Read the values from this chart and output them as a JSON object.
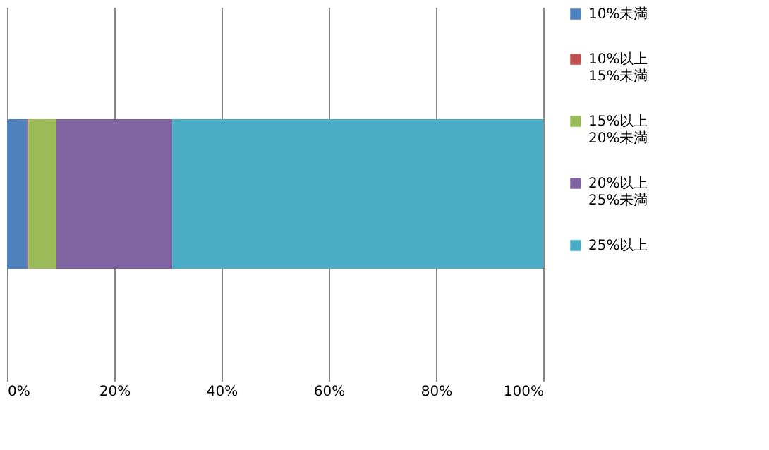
{
  "chart_data": {
    "type": "bar",
    "orientation": "horizontal",
    "stacked": true,
    "categories": [
      null
    ],
    "series": [
      {
        "name": "10%未満",
        "color": "#4f81bd",
        "values": [
          3.8
        ]
      },
      {
        "name": "10%以上\n15%未満",
        "color": "#c0504d",
        "values": [
          0.2
        ]
      },
      {
        "name": "15%以上\n20%未満",
        "color": "#9bbb59",
        "values": [
          5.2
        ]
      },
      {
        "name": "20%以上\n25%未満",
        "color": "#8064a2",
        "values": [
          21.6
        ]
      },
      {
        "name": "25%以上",
        "color": "#4bacc6",
        "values": [
          69.2
        ]
      }
    ],
    "xlim": [
      0,
      100
    ],
    "xticks": [
      {
        "value": 0,
        "label": "0%"
      },
      {
        "value": 20,
        "label": "20%"
      },
      {
        "value": 40,
        "label": "40%"
      },
      {
        "value": 60,
        "label": "60%"
      },
      {
        "value": 80,
        "label": "80%"
      },
      {
        "value": 100,
        "label": "100%"
      }
    ],
    "grid": "x",
    "legend": "right"
  }
}
